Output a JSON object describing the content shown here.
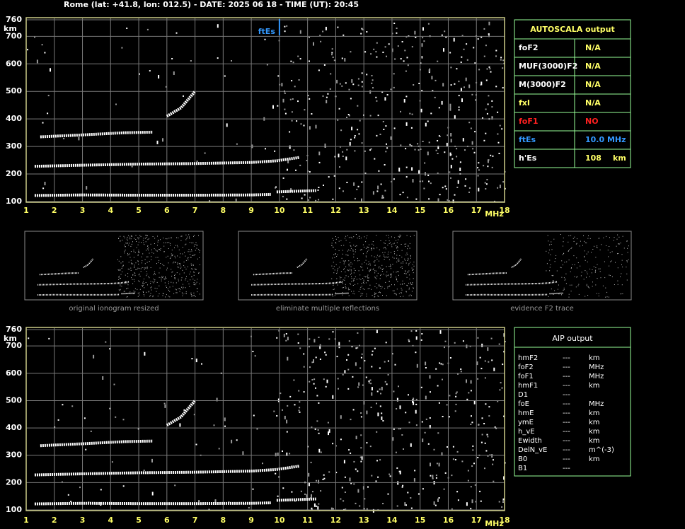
{
  "header": {
    "title": "Rome (lat: +41.8, lon: 012.5) - DATE: 2025 06 18 - TIME (UT): 20:45"
  },
  "ionogram_top": {
    "xlim": [
      1,
      18
    ],
    "ylim": [
      100,
      760
    ],
    "xticks": [
      1,
      2,
      3,
      4,
      5,
      6,
      7,
      8,
      9,
      10,
      11,
      12,
      13,
      14,
      15,
      16,
      17,
      18
    ],
    "yticks": [
      100,
      200,
      300,
      400,
      500,
      600,
      700,
      760
    ],
    "x_unit": "MHz",
    "y_unit": "km",
    "ftes_marker": {
      "label": "ftEs",
      "value": 10
    },
    "traces": [
      {
        "x": [
          1.3,
          3,
          5,
          7,
          9,
          9.7
        ],
        "y": [
          122,
          124,
          123,
          123,
          124,
          126
        ]
      },
      {
        "x": [
          9.9,
          11.3
        ],
        "y": [
          135,
          140
        ]
      },
      {
        "x": [
          1.3,
          3,
          5,
          7,
          9,
          9.9,
          10.7
        ],
        "y": [
          228,
          232,
          236,
          238,
          242,
          248,
          260
        ]
      },
      {
        "x": [
          1.5,
          3,
          4.5,
          5.5
        ],
        "y": [
          335,
          342,
          350,
          352
        ]
      },
      {
        "x": [
          6,
          6.5,
          7
        ],
        "y": [
          410,
          440,
          500
        ]
      }
    ]
  },
  "autoscala": {
    "title": "AUTOSCALA output",
    "rows": [
      {
        "label": "foF2",
        "value": "N/A",
        "color": "#ffffff"
      },
      {
        "label": "MUF(3000)F2",
        "value": "N/A",
        "color": "#ffffff"
      },
      {
        "label": "M(3000)F2",
        "value": "N/A",
        "color": "#ffffff"
      },
      {
        "label": "fxI",
        "value": "N/A",
        "color": "#ffff66"
      },
      {
        "label": "foF1",
        "value": "NO",
        "color": "#ff2020"
      },
      {
        "label": "ftEs",
        "value": "10.0 MHz",
        "color": "#3399ff"
      },
      {
        "label": "h'Es",
        "value": "108",
        "unit": "km",
        "color": "#ffffff"
      }
    ]
  },
  "thumbnails": [
    {
      "caption": "original ionogram resized"
    },
    {
      "caption": "eliminate multiple reflections"
    },
    {
      "caption": "evidence F2 trace"
    }
  ],
  "ionogram_bottom": {
    "xlim": [
      1,
      18
    ],
    "ylim": [
      100,
      760
    ],
    "xticks": [
      1,
      2,
      3,
      4,
      5,
      6,
      7,
      8,
      9,
      10,
      11,
      12,
      13,
      14,
      15,
      16,
      17,
      18
    ],
    "yticks": [
      100,
      200,
      300,
      400,
      500,
      600,
      700,
      760
    ],
    "x_unit": "MHz",
    "y_unit": "km",
    "traces": [
      {
        "x": [
          1.3,
          3,
          5,
          7,
          9,
          9.7
        ],
        "y": [
          122,
          124,
          123,
          123,
          124,
          126
        ]
      },
      {
        "x": [
          9.9,
          11.3
        ],
        "y": [
          135,
          140
        ]
      },
      {
        "x": [
          1.3,
          3,
          5,
          7,
          9,
          9.9,
          10.7
        ],
        "y": [
          228,
          232,
          236,
          238,
          242,
          248,
          260
        ]
      },
      {
        "x": [
          1.5,
          3,
          4.5,
          5.5
        ],
        "y": [
          335,
          342,
          350,
          352
        ]
      },
      {
        "x": [
          6,
          6.5,
          7
        ],
        "y": [
          410,
          440,
          500
        ]
      }
    ]
  },
  "aip": {
    "title": "AIP output",
    "rows": [
      {
        "param": "hmF2",
        "value": "---",
        "unit": "km"
      },
      {
        "param": "foF2",
        "value": "---",
        "unit": "MHz"
      },
      {
        "param": "foF1",
        "value": "---",
        "unit": "MHz"
      },
      {
        "param": "hmF1",
        "value": "---",
        "unit": "km"
      },
      {
        "param": "D1",
        "value": "---"
      },
      {
        "param": "foE",
        "value": "---",
        "unit": "MHz"
      },
      {
        "param": "hmE",
        "value": "---",
        "unit": "km"
      },
      {
        "param": "ymE",
        "value": "---",
        "unit": "km"
      },
      {
        "param": "h_vE",
        "value": "---",
        "unit": "km"
      },
      {
        "param": "Ewidth",
        "value": "---",
        "unit": "km"
      },
      {
        "param": "DelN_vE",
        "value": "---",
        "unit": "m^(-3)"
      },
      {
        "param": "B0",
        "value": "---",
        "unit": "km"
      },
      {
        "param": "B1",
        "value": "---"
      }
    ]
  }
}
